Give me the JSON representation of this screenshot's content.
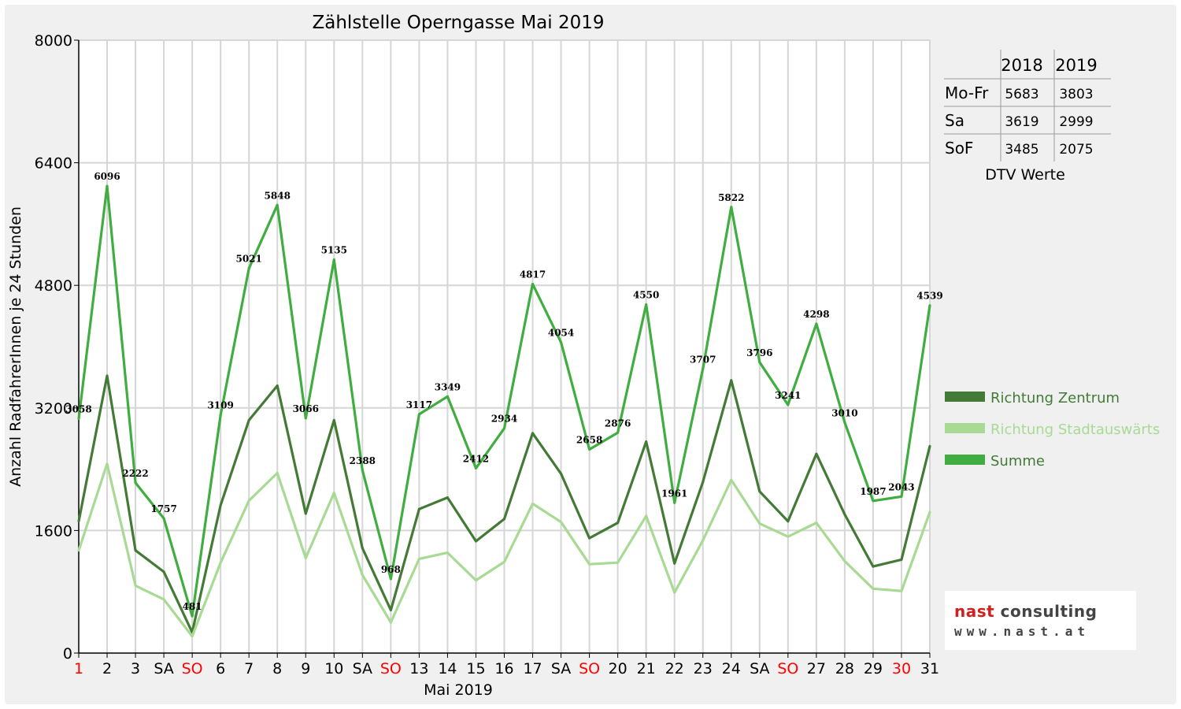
{
  "chart_data": {
    "type": "line",
    "title": "Zählstelle Operngasse Mai 2019",
    "xlabel": "Mai 2019",
    "ylabel": "Anzahl RadfahrerInnen je 24 Stunden",
    "ylim": [
      0,
      8000
    ],
    "yticks": [
      0,
      1600,
      3200,
      4800,
      6400,
      8000
    ],
    "grid": true,
    "legend_position": "right",
    "categories": [
      "1",
      "2",
      "3",
      "SA",
      "SO",
      "6",
      "7",
      "8",
      "9",
      "10",
      "SA",
      "SO",
      "13",
      "14",
      "15",
      "16",
      "17",
      "SA",
      "SO",
      "20",
      "21",
      "22",
      "23",
      "24",
      "SA",
      "SO",
      "27",
      "28",
      "29",
      "30",
      "31"
    ],
    "red_categories": [
      0,
      4,
      11,
      18,
      25,
      29
    ],
    "series": [
      {
        "name": "Richtung Zentrum",
        "color": "#437a35",
        "values": [
          1720,
          3620,
          1340,
          1060,
          270,
          1930,
          3040,
          3490,
          1820,
          3040,
          1370,
          560,
          1880,
          2030,
          1460,
          1750,
          2870,
          2340,
          1500,
          1700,
          2760,
          1170,
          2230,
          3560,
          2110,
          1720,
          2600,
          1810,
          1130,
          1220,
          2700
        ]
      },
      {
        "name": "Richtung Stadtauswärts",
        "color": "#a8da94",
        "values": [
          1340,
          2470,
          880,
          700,
          220,
          1180,
          1990,
          2350,
          1240,
          2090,
          1020,
          400,
          1230,
          1310,
          950,
          1190,
          1950,
          1710,
          1160,
          1180,
          1790,
          790,
          1470,
          2260,
          1690,
          1520,
          1700,
          1200,
          840,
          810,
          1840
        ]
      },
      {
        "name": "Summe",
        "color": "#3fad3f",
        "values": [
          3058,
          6096,
          2222,
          1757,
          481,
          3109,
          5021,
          5848,
          3066,
          5135,
          2388,
          968,
          3117,
          3349,
          2412,
          2934,
          4817,
          4054,
          2658,
          2876,
          4550,
          1961,
          3707,
          5822,
          3796,
          3241,
          4298,
          3010,
          1987,
          2043,
          4539
        ]
      }
    ],
    "data_labels": [
      "3058",
      "6096",
      "2222",
      "1757",
      "481",
      "3109",
      "5021",
      "5848",
      "3066",
      "5135",
      "2388",
      "968",
      "3117",
      "3349",
      "2412",
      "2934",
      "4817",
      "4054",
      "2658",
      "2876",
      "4550",
      "1961",
      "3707",
      "5822",
      "3796",
      "3241",
      "4298",
      "3010",
      "1987",
      "2043",
      "4539"
    ]
  },
  "dtv_table": {
    "headers": [
      "2018",
      "2019"
    ],
    "rows": [
      {
        "label": "Mo-Fr",
        "v2018": "5683",
        "v2019": "3803"
      },
      {
        "label": "Sa",
        "v2018": "3619",
        "v2019": "2999"
      },
      {
        "label": "SoF",
        "v2018": "3485",
        "v2019": "2075"
      }
    ],
    "caption": "DTV Werte"
  },
  "logo": {
    "brand_first": "nast",
    "brand_second": " consulting",
    "url": "www.nast.at"
  }
}
